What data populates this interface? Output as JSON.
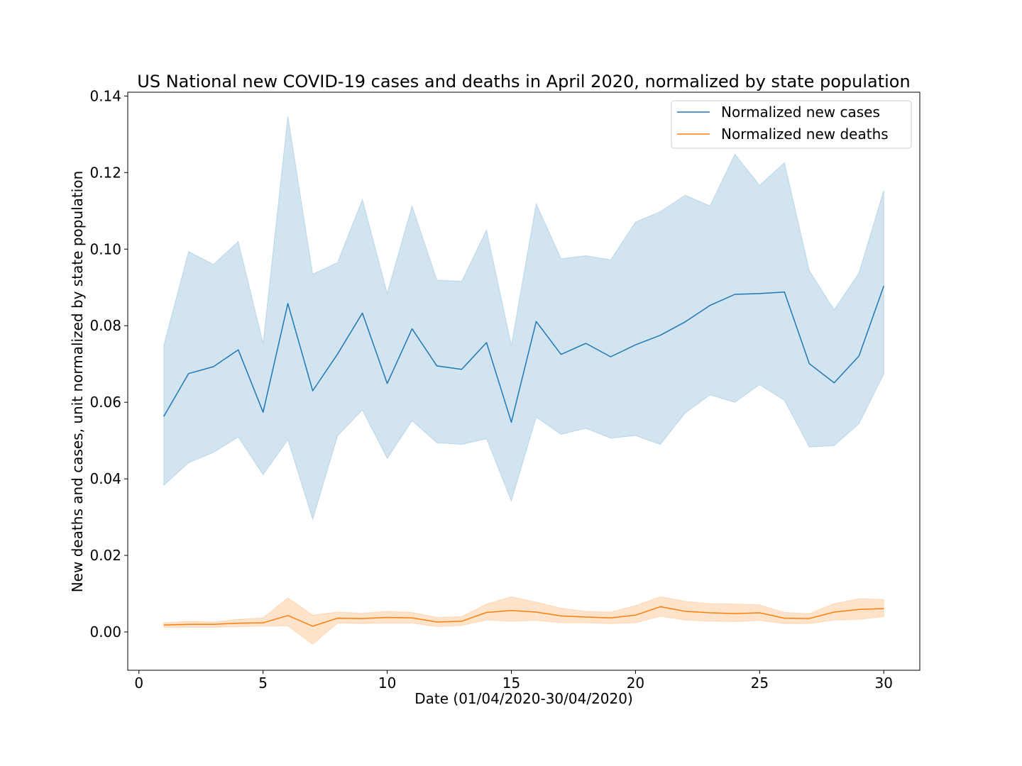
{
  "chart_data": {
    "type": "line",
    "title": "US National new COVID-19 cases and deaths in April 2020, normalized by state population",
    "xlabel": "Date (01/04/2020-30/04/2020)",
    "ylabel": "New deaths and cases, unit normalized by state population",
    "xlim": [
      -0.45,
      31.45
    ],
    "ylim": [
      -0.01,
      0.141
    ],
    "xticks": [
      0,
      5,
      10,
      15,
      20,
      25,
      30
    ],
    "yticks": [
      0.0,
      0.02,
      0.04,
      0.06,
      0.08,
      0.1,
      0.12,
      0.14
    ],
    "xtick_labels": [
      "0",
      "5",
      "10",
      "15",
      "20",
      "25",
      "30"
    ],
    "ytick_labels": [
      "0.00",
      "0.02",
      "0.04",
      "0.06",
      "0.08",
      "0.10",
      "0.12",
      "0.14"
    ],
    "grid": false,
    "legend_position": "top-right",
    "x": [
      1,
      2,
      3,
      4,
      5,
      6,
      7,
      8,
      9,
      10,
      11,
      12,
      13,
      14,
      15,
      16,
      17,
      18,
      19,
      20,
      21,
      22,
      23,
      24,
      25,
      26,
      27,
      28,
      29,
      30
    ],
    "series": [
      {
        "name": "Normalized new cases",
        "color": "#1f77b4",
        "values": [
          0.0563,
          0.0675,
          0.0693,
          0.0737,
          0.0574,
          0.0858,
          0.063,
          0.0726,
          0.0833,
          0.0649,
          0.0792,
          0.0695,
          0.0686,
          0.0756,
          0.0548,
          0.0811,
          0.0725,
          0.0754,
          0.0719,
          0.075,
          0.0775,
          0.081,
          0.0853,
          0.0882,
          0.0884,
          0.0888,
          0.0701,
          0.0651,
          0.0721,
          0.0904
        ],
        "lower": [
          0.0383,
          0.0442,
          0.0469,
          0.0509,
          0.0411,
          0.0502,
          0.0294,
          0.0512,
          0.058,
          0.0453,
          0.0552,
          0.0494,
          0.049,
          0.0505,
          0.0342,
          0.0561,
          0.0516,
          0.0532,
          0.0506,
          0.0513,
          0.049,
          0.0572,
          0.0619,
          0.06,
          0.0646,
          0.0605,
          0.0483,
          0.0487,
          0.0544,
          0.0674
        ],
        "upper": [
          0.0748,
          0.0994,
          0.096,
          0.102,
          0.0754,
          0.1347,
          0.0935,
          0.0965,
          0.113,
          0.0885,
          0.1113,
          0.0919,
          0.0916,
          0.105,
          0.0749,
          0.1119,
          0.0975,
          0.0983,
          0.0972,
          0.1071,
          0.1098,
          0.1141,
          0.1113,
          0.1248,
          0.1167,
          0.1226,
          0.0944,
          0.0842,
          0.0938,
          0.1154
        ]
      },
      {
        "name": "Normalized new deaths",
        "color": "#ff7f0e",
        "values": [
          0.0018,
          0.002,
          0.002,
          0.0023,
          0.0024,
          0.0043,
          0.0015,
          0.0036,
          0.0035,
          0.0038,
          0.0037,
          0.0026,
          0.0028,
          0.0051,
          0.0056,
          0.0052,
          0.0042,
          0.0039,
          0.0037,
          0.0044,
          0.0066,
          0.0054,
          0.005,
          0.0048,
          0.005,
          0.0036,
          0.0035,
          0.0052,
          0.0059,
          0.0061
        ],
        "lower": [
          0.0012,
          0.0012,
          0.0012,
          0.0014,
          0.0015,
          0.0016,
          -0.0032,
          0.0023,
          0.0022,
          0.0023,
          0.0023,
          0.0014,
          0.0017,
          0.0031,
          0.0028,
          0.003,
          0.0024,
          0.0024,
          0.0022,
          0.0024,
          0.0041,
          0.0031,
          0.0028,
          0.0027,
          0.003,
          0.0022,
          0.0022,
          0.0031,
          0.0033,
          0.004
        ],
        "upper": [
          0.0024,
          0.0028,
          0.0026,
          0.0033,
          0.0037,
          0.0089,
          0.0044,
          0.0052,
          0.0049,
          0.0054,
          0.0051,
          0.0038,
          0.004,
          0.0073,
          0.0092,
          0.0078,
          0.0062,
          0.0054,
          0.0052,
          0.0069,
          0.0092,
          0.008,
          0.0074,
          0.0073,
          0.0071,
          0.0051,
          0.0048,
          0.0074,
          0.0087,
          0.0085
        ]
      }
    ]
  }
}
